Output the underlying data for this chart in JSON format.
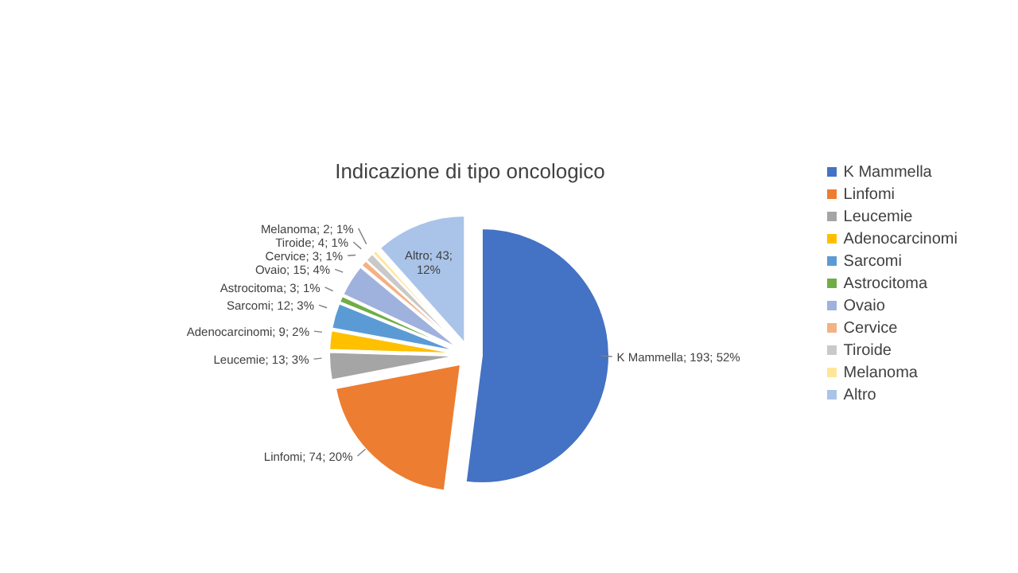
{
  "chart_data": {
    "type": "pie",
    "title": "Indicazione di tipo oncologico",
    "categories": [
      "K Mammella",
      "Linfomi",
      "Leucemie",
      "Adenocarcinomi",
      "Sarcomi",
      "Astrocitoma",
      "Ovaio",
      "Cervice",
      "Tiroide",
      "Melanoma",
      "Altro"
    ],
    "values": [
      193,
      74,
      13,
      9,
      12,
      3,
      15,
      3,
      4,
      2,
      43
    ],
    "colors": [
      "#4472c4",
      "#ed7d31",
      "#a5a5a5",
      "#ffc000",
      "#5b9bd5",
      "#70ad47",
      "#9fb1dd",
      "#f4b183",
      "#c9c9c9",
      "#ffe699",
      "#a9c4e8"
    ],
    "value_labels": [
      "K Mammella; 193; 52%",
      "Linfomi; 74; 20%",
      "Leucemie; 13; 3%",
      "Adenocarcinomi; 9; 2%",
      "Sarcomi; 12; 3%",
      "Astrocitoma; 3; 1%",
      "Ovaio; 15; 4%",
      "Cervice; 3; 1%",
      "Tiroide; 4; 1%",
      "Melanoma; 2; 1%",
      "Altro; 43; 12%"
    ],
    "legend": "right"
  }
}
